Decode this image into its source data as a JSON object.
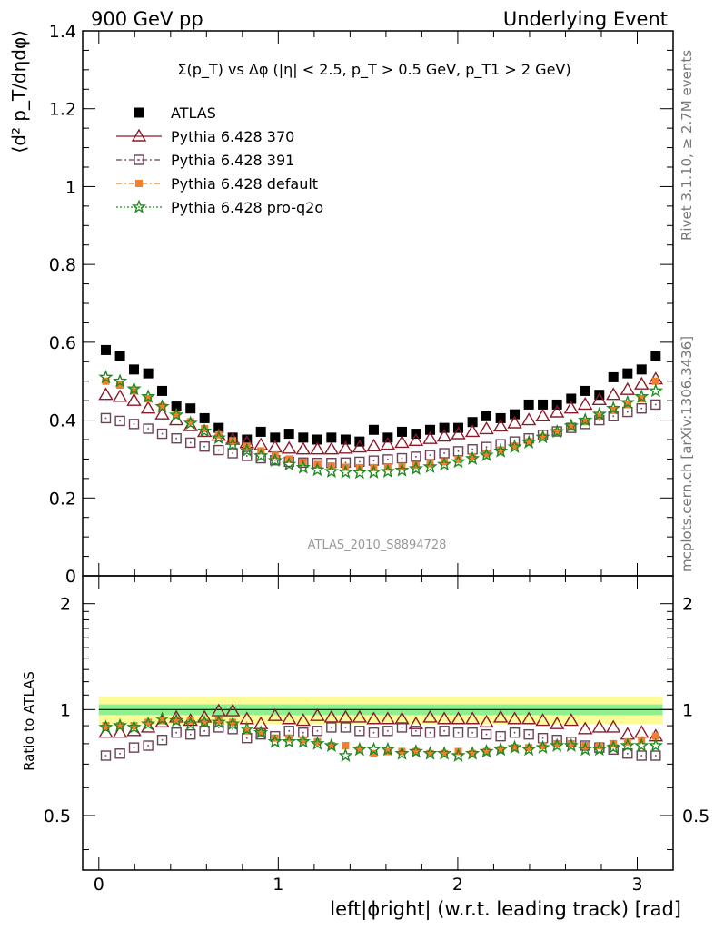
{
  "header": {
    "left": "900 GeV pp",
    "right": "Underlying Event",
    "side_top": "Rivet 3.1.10, ≥ 2.7M events",
    "side_bottom": "mcplots.cern.ch [arXiv:1306.3436]"
  },
  "chart_data": [
    {
      "type": "scatter",
      "title": "Σ(p_T) vs Δφ (|η| < 2.5, p_T > 0.5 GeV, p_T1 > 2 GeV)",
      "ylabel": "⟨d² p_T/dηdφ⟩",
      "xlabel": "",
      "watermark": "ATLAS_2010_S8894728",
      "xlim": [
        -0.09,
        3.2
      ],
      "ylim": [
        0,
        1.4
      ],
      "yticks": [
        "0",
        "0.2",
        "0.4",
        "0.6",
        "0.8",
        "1",
        "1.2",
        "1.4"
      ],
      "x": [
        0.039,
        0.118,
        0.196,
        0.275,
        0.353,
        0.432,
        0.511,
        0.589,
        0.668,
        0.746,
        0.825,
        0.903,
        0.982,
        1.06,
        1.139,
        1.218,
        1.296,
        1.375,
        1.453,
        1.532,
        1.61,
        1.689,
        1.767,
        1.846,
        1.925,
        2.003,
        2.082,
        2.16,
        2.239,
        2.317,
        2.396,
        2.474,
        2.553,
        2.632,
        2.71,
        2.789,
        2.867,
        2.946,
        3.024,
        3.103
      ],
      "series": [
        {
          "name": "ATLAS",
          "color": "#000000",
          "marker": "filled-square",
          "values": [
            0.58,
            0.565,
            0.53,
            0.52,
            0.475,
            0.435,
            0.43,
            0.405,
            0.38,
            0.355,
            0.35,
            0.37,
            0.355,
            0.365,
            0.355,
            0.35,
            0.355,
            0.35,
            0.345,
            0.375,
            0.355,
            0.37,
            0.365,
            0.375,
            0.38,
            0.38,
            0.395,
            0.41,
            0.405,
            0.415,
            0.44,
            0.44,
            0.44,
            0.455,
            0.475,
            0.465,
            0.51,
            0.52,
            0.53,
            0.565
          ]
        },
        {
          "name": "Pythia 6.428 370",
          "color": "#8b1a2b",
          "marker": "open-triangle",
          "values": [
            0.465,
            0.46,
            0.45,
            0.43,
            0.415,
            0.4,
            0.385,
            0.37,
            0.36,
            0.35,
            0.342,
            0.336,
            0.33,
            0.327,
            0.325,
            0.325,
            0.325,
            0.327,
            0.33,
            0.333,
            0.337,
            0.342,
            0.347,
            0.352,
            0.358,
            0.364,
            0.37,
            0.377,
            0.384,
            0.392,
            0.4,
            0.41,
            0.42,
            0.43,
            0.44,
            0.452,
            0.465,
            0.478,
            0.492,
            0.505
          ]
        },
        {
          "name": "Pythia 6.428 391",
          "color": "#6b4258",
          "marker": "open-square",
          "values": [
            0.405,
            0.398,
            0.39,
            0.378,
            0.365,
            0.353,
            0.342,
            0.332,
            0.323,
            0.315,
            0.308,
            0.302,
            0.297,
            0.293,
            0.291,
            0.29,
            0.29,
            0.291,
            0.293,
            0.296,
            0.299,
            0.302,
            0.306,
            0.31,
            0.315,
            0.32,
            0.325,
            0.331,
            0.338,
            0.345,
            0.353,
            0.362,
            0.371,
            0.38,
            0.39,
            0.4,
            0.41,
            0.421,
            0.43,
            0.44
          ]
        },
        {
          "name": "Pythia 6.428 default",
          "color": "#f08030",
          "marker": "filled-square-small",
          "values": [
            0.5,
            0.49,
            0.475,
            0.455,
            0.435,
            0.415,
            0.396,
            0.378,
            0.362,
            0.347,
            0.333,
            0.321,
            0.31,
            0.3,
            0.292,
            0.286,
            0.282,
            0.279,
            0.278,
            0.278,
            0.279,
            0.281,
            0.284,
            0.288,
            0.293,
            0.299,
            0.306,
            0.314,
            0.323,
            0.333,
            0.344,
            0.356,
            0.369,
            0.382,
            0.396,
            0.41,
            0.425,
            0.44,
            0.455,
            0.5
          ]
        },
        {
          "name": "Pythia 6.428 pro-q2o",
          "color": "#1f8a1f",
          "marker": "open-star",
          "values": [
            0.51,
            0.5,
            0.48,
            0.46,
            0.435,
            0.413,
            0.392,
            0.372,
            0.354,
            0.337,
            0.322,
            0.308,
            0.296,
            0.286,
            0.278,
            0.272,
            0.268,
            0.266,
            0.265,
            0.266,
            0.268,
            0.271,
            0.275,
            0.28,
            0.286,
            0.293,
            0.301,
            0.31,
            0.32,
            0.331,
            0.343,
            0.356,
            0.37,
            0.385,
            0.4,
            0.415,
            0.43,
            0.445,
            0.46,
            0.475
          ]
        }
      ]
    },
    {
      "type": "scatter",
      "ylabel": "Ratio to ATLAS",
      "xlabel": "left|ϕright| (w.r.t. leading track) [rad]",
      "xlim": [
        -0.09,
        3.2
      ],
      "ylim": [
        0.35,
        2.4
      ],
      "log_y": true,
      "xticks": [
        "0",
        "1",
        "2",
        "3"
      ],
      "yticks": [
        "0.5",
        "1",
        "2"
      ],
      "band_inner": [
        0.965,
        1.035
      ],
      "band_outer": [
        0.91,
        1.09
      ],
      "series": [
        {
          "name": "Pythia 6.428 370",
          "color": "#8b1a2b",
          "marker": "open-triangle",
          "values": [
            0.86,
            0.86,
            0.87,
            0.89,
            0.92,
            0.95,
            0.93,
            0.95,
            0.99,
            0.99,
            0.94,
            0.91,
            0.96,
            0.94,
            0.93,
            0.96,
            0.95,
            0.95,
            0.95,
            0.94,
            0.94,
            0.94,
            0.91,
            0.95,
            0.94,
            0.94,
            0.94,
            0.92,
            0.95,
            0.94,
            0.94,
            0.93,
            0.91,
            0.93,
            0.88,
            0.89,
            0.89,
            0.85,
            0.86,
            0.84
          ]
        },
        {
          "name": "Pythia 6.428 391",
          "color": "#6b4258",
          "marker": "open-square",
          "values": [
            0.74,
            0.75,
            0.78,
            0.79,
            0.82,
            0.86,
            0.85,
            0.87,
            0.89,
            0.88,
            0.83,
            0.85,
            0.84,
            0.87,
            0.86,
            0.87,
            0.89,
            0.89,
            0.87,
            0.86,
            0.87,
            0.89,
            0.87,
            0.86,
            0.87,
            0.86,
            0.86,
            0.85,
            0.84,
            0.86,
            0.85,
            0.83,
            0.82,
            0.81,
            0.79,
            0.78,
            0.77,
            0.75,
            0.74,
            0.74
          ]
        },
        {
          "name": "Pythia 6.428 default",
          "color": "#f08030",
          "marker": "filled-square-small",
          "values": [
            0.9,
            0.9,
            0.9,
            0.92,
            0.93,
            0.93,
            0.93,
            0.92,
            0.93,
            0.92,
            0.87,
            0.86,
            0.83,
            0.83,
            0.82,
            0.81,
            0.79,
            0.79,
            0.77,
            0.75,
            0.76,
            0.76,
            0.76,
            0.75,
            0.75,
            0.76,
            0.75,
            0.76,
            0.77,
            0.78,
            0.78,
            0.79,
            0.8,
            0.8,
            0.79,
            0.79,
            0.8,
            0.81,
            0.82,
            0.84
          ]
        },
        {
          "name": "Pythia 6.428 pro-q2o",
          "color": "#1f8a1f",
          "marker": "open-star",
          "values": [
            0.89,
            0.9,
            0.89,
            0.91,
            0.94,
            0.93,
            0.91,
            0.92,
            0.92,
            0.91,
            0.88,
            0.86,
            0.81,
            0.81,
            0.81,
            0.8,
            0.79,
            0.74,
            0.77,
            0.77,
            0.77,
            0.75,
            0.76,
            0.75,
            0.75,
            0.74,
            0.75,
            0.76,
            0.77,
            0.78,
            0.77,
            0.78,
            0.79,
            0.79,
            0.77,
            0.77,
            0.78,
            0.79,
            0.79,
            0.79
          ]
        }
      ]
    }
  ]
}
